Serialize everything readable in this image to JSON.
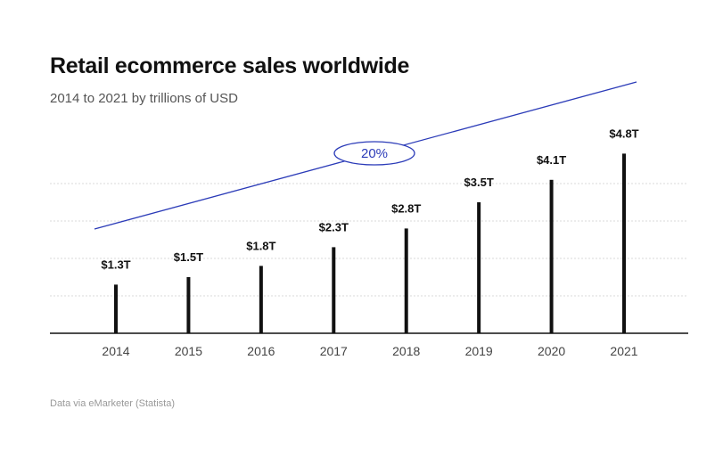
{
  "chart_data": {
    "type": "bar",
    "title": "Retail ecommerce sales worldwide",
    "subtitle": "2014 to 2021 by trillions of USD",
    "categories": [
      "2014",
      "2015",
      "2016",
      "2017",
      "2018",
      "2019",
      "2020",
      "2021"
    ],
    "values": [
      1.3,
      1.5,
      1.8,
      2.3,
      2.8,
      3.5,
      4.1,
      4.8
    ],
    "data_labels": [
      "$1.3T",
      "$1.5T",
      "$1.8T",
      "$2.3T",
      "$2.8T",
      "$3.5T",
      "$4.1T",
      "$4.8T"
    ],
    "ylim": [
      0,
      5
    ],
    "grid": true,
    "annotation": {
      "label": "20%"
    },
    "colors": {
      "bar": "#111111",
      "trend_line": "#2b3bb8",
      "grid": "#cccccc"
    },
    "source": "Data via eMarketer (Statista)"
  }
}
